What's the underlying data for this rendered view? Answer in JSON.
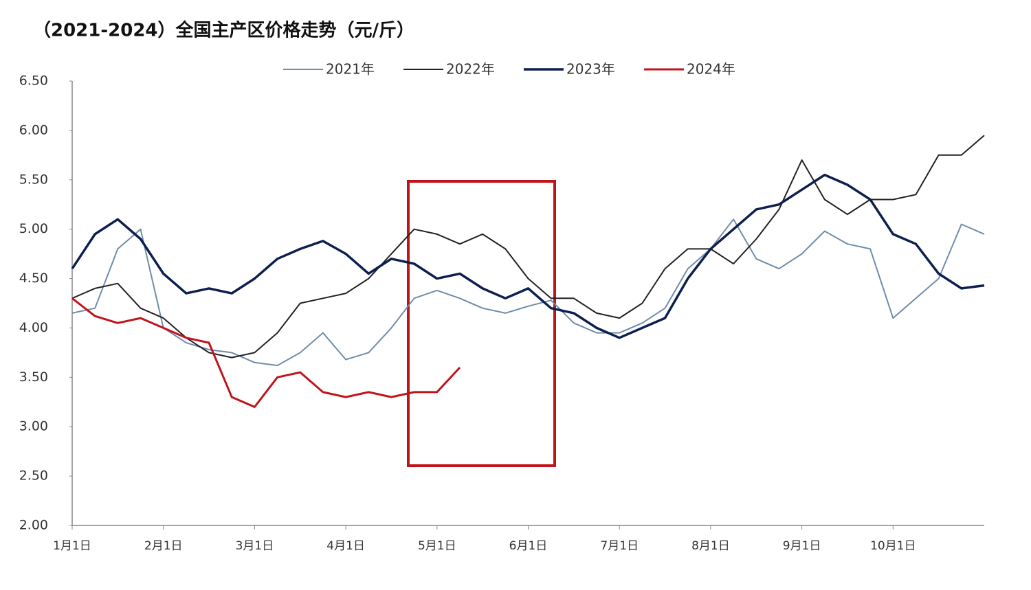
{
  "chart_data": {
    "type": "line",
    "title": "（2021-2024）全国主产区价格走势（元/斤）",
    "categories": [
      "1月1日",
      null,
      null,
      null,
      "2月1日",
      null,
      null,
      null,
      "3月1日",
      null,
      null,
      null,
      "4月1日",
      null,
      null,
      null,
      "5月1日",
      null,
      null,
      null,
      "6月1日",
      null,
      null,
      null,
      "7月1日",
      null,
      null,
      null,
      "8月1日",
      null,
      null,
      null,
      "9月1日",
      null,
      null,
      null,
      "10月1日",
      null,
      null,
      null,
      null
    ],
    "series": [
      {
        "name": "2021年",
        "color": "#6f8caa",
        "width": 2,
        "values": [
          4.15,
          4.2,
          4.8,
          5.0,
          4.0,
          3.85,
          3.78,
          3.75,
          3.65,
          3.62,
          3.75,
          3.95,
          3.68,
          3.75,
          4.0,
          4.3,
          4.38,
          4.3,
          4.2,
          4.15,
          4.22,
          4.28,
          4.05,
          3.95,
          3.95,
          4.05,
          4.2,
          4.6,
          4.8,
          5.1,
          4.7,
          4.6,
          4.75,
          4.98,
          4.85,
          4.8,
          4.1,
          4.3,
          4.5,
          5.05,
          4.95
        ]
      },
      {
        "name": "2022年",
        "color": "#222222",
        "width": 2,
        "values": [
          4.3,
          4.4,
          4.45,
          4.2,
          4.1,
          3.9,
          3.75,
          3.7,
          3.75,
          3.95,
          4.25,
          4.3,
          4.35,
          4.5,
          4.75,
          5.0,
          4.95,
          4.85,
          4.95,
          4.8,
          4.5,
          4.3,
          4.3,
          4.15,
          4.1,
          4.25,
          4.6,
          4.8,
          4.8,
          4.65,
          4.9,
          5.2,
          5.7,
          5.3,
          5.15,
          5.3,
          5.3,
          5.35,
          5.75,
          5.75,
          5.95
        ]
      },
      {
        "name": "2023年",
        "color": "#0d1f4f",
        "width": 3.5,
        "values": [
          4.6,
          4.95,
          5.1,
          4.9,
          4.55,
          4.35,
          4.4,
          4.35,
          4.5,
          4.7,
          4.8,
          4.88,
          4.75,
          4.55,
          4.7,
          4.65,
          4.5,
          4.55,
          4.4,
          4.3,
          4.4,
          4.2,
          4.15,
          4.0,
          3.9,
          4.0,
          4.1,
          4.5,
          4.8,
          5.0,
          5.2,
          5.25,
          5.4,
          5.55,
          5.45,
          5.3,
          4.95,
          4.85,
          4.55,
          4.4,
          4.43
        ]
      },
      {
        "name": "2024年",
        "color": "#c0141c",
        "width": 3,
        "values": [
          4.3,
          4.12,
          4.05,
          4.1,
          4.0,
          3.9,
          3.85,
          3.3,
          3.2,
          3.5,
          3.55,
          3.35,
          3.3,
          3.35,
          3.3,
          3.35,
          3.35,
          3.6,
          null,
          null,
          null,
          null,
          null,
          null,
          null,
          null,
          null,
          null,
          null,
          null,
          null,
          null,
          null,
          null,
          null,
          null,
          null,
          null,
          null,
          null,
          null
        ]
      }
    ],
    "ylim": [
      2.0,
      6.5
    ],
    "yticks": [
      {
        "value": 2.0,
        "label": "2.00"
      },
      {
        "value": 2.5,
        "label": "2.50"
      },
      {
        "value": 3.0,
        "label": "3.00"
      },
      {
        "value": 3.5,
        "label": "3.50"
      },
      {
        "value": 4.0,
        "label": "4.00"
      },
      {
        "value": 4.5,
        "label": "4.50"
      },
      {
        "value": 5.0,
        "label": "5.00"
      },
      {
        "value": 5.5,
        "label": "5.50"
      },
      {
        "value": 6.0,
        "label": "6.00"
      },
      {
        "value": 6.5,
        "label": "6.50"
      }
    ],
    "grid": false,
    "legend": "top"
  }
}
